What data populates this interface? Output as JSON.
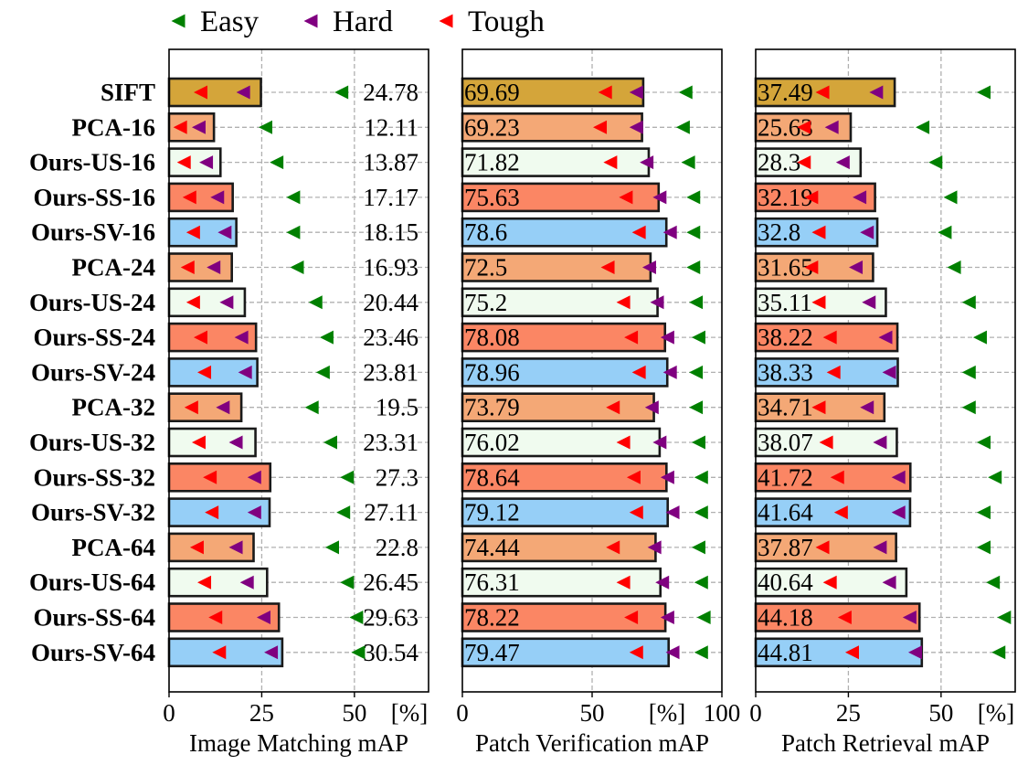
{
  "chart_data": {
    "type": "bar",
    "orientation": "horizontal",
    "categories": [
      "SIFT",
      "PCA-16",
      "Ours-US-16",
      "Ours-SS-16",
      "Ours-SV-16",
      "PCA-24",
      "Ours-US-24",
      "Ours-SS-24",
      "Ours-SV-24",
      "PCA-32",
      "Ours-US-32",
      "Ours-SS-32",
      "Ours-SV-32",
      "PCA-64",
      "Ours-US-64",
      "Ours-SS-64",
      "Ours-SV-64"
    ],
    "bar_colors": [
      "#d4a53a",
      "#f4a876",
      "#f0fbef",
      "#fb8664",
      "#96cff7",
      "#f4a876",
      "#f0fbef",
      "#fb8664",
      "#96cff7",
      "#f4a876",
      "#f0fbef",
      "#fb8664",
      "#96cff7",
      "#f4a876",
      "#f0fbef",
      "#fb8664",
      "#96cff7"
    ],
    "legend": [
      {
        "name": "Easy",
        "color": "#008000"
      },
      {
        "name": "Hard",
        "color": "#800080"
      },
      {
        "name": "Tough",
        "color": "#ff0000"
      }
    ],
    "panels": [
      {
        "id": "image-matching",
        "xlabel": "Image Matching mAP",
        "unit": "[%]",
        "xlim": [
          0,
          70
        ],
        "xticks": [
          0,
          25,
          50
        ],
        "value_labels": [
          "24.78",
          "12.11",
          "13.87",
          "17.17",
          "18.15",
          "16.93",
          "20.44",
          "23.46",
          "23.81",
          "19.5",
          "23.31",
          "27.3",
          "27.11",
          "22.8",
          "26.45",
          "29.63",
          "30.54"
        ],
        "values": [
          24.78,
          12.11,
          13.87,
          17.17,
          18.15,
          16.93,
          20.44,
          23.46,
          23.81,
          19.5,
          23.31,
          27.3,
          27.11,
          22.8,
          26.45,
          29.63,
          30.54
        ],
        "easy": [
          46.5,
          26,
          29,
          33.5,
          33.5,
          34.5,
          39.5,
          42.5,
          41.5,
          38.5,
          43.5,
          48,
          47,
          44,
          48,
          50.5,
          51
        ],
        "hard": [
          20,
          8,
          10,
          13,
          15,
          12,
          15.5,
          19.5,
          20.5,
          14.5,
          18,
          23,
          23,
          18,
          21,
          25.5,
          27.5
        ],
        "tough": [
          8.5,
          3,
          4,
          5.5,
          6.5,
          5,
          6.5,
          8.5,
          9.5,
          6,
          8,
          11,
          11.5,
          7.5,
          9.5,
          12.5,
          13.5
        ]
      },
      {
        "id": "patch-verification",
        "xlabel": "Patch Verification mAP",
        "unit": "[%]",
        "xlim": [
          0,
          100
        ],
        "xticks": [
          0,
          50,
          100
        ],
        "value_labels": [
          "69.69",
          "69.23",
          "71.82",
          "75.63",
          "78.6",
          "72.5",
          "75.2",
          "78.08",
          "78.96",
          "73.79",
          "76.02",
          "78.64",
          "79.12",
          "74.44",
          "76.31",
          "78.22",
          "79.47"
        ],
        "values": [
          69.69,
          69.23,
          71.82,
          75.63,
          78.6,
          72.5,
          75.2,
          78.08,
          78.96,
          73.79,
          76.02,
          78.64,
          79.12,
          74.44,
          76.31,
          78.22,
          79.47
        ],
        "easy": [
          86,
          85,
          87,
          89,
          89,
          89,
          90,
          91,
          90,
          90,
          91,
          92,
          92,
          91,
          92,
          93,
          92
        ],
        "hard": [
          67,
          67,
          71,
          76,
          80,
          72,
          75,
          79,
          80,
          73,
          76,
          79,
          81,
          74,
          77,
          79,
          81
        ],
        "tough": [
          55,
          53,
          57,
          63,
          68,
          56,
          62,
          65,
          68,
          58,
          62,
          66,
          67,
          58,
          62,
          65,
          67
        ]
      },
      {
        "id": "patch-retrieval",
        "xlabel": "Patch Retrieval mAP",
        "unit": "[%]",
        "xlim": [
          0,
          70
        ],
        "xticks": [
          0,
          25,
          50
        ],
        "value_labels": [
          "37.49",
          "25.63",
          "28.3",
          "32.19",
          "32.8",
          "31.65",
          "35.11",
          "38.22",
          "38.33",
          "34.71",
          "38.07",
          "41.72",
          "41.64",
          "37.87",
          "40.64",
          "44.18",
          "44.81"
        ],
        "values": [
          37.49,
          25.63,
          28.3,
          32.19,
          32.8,
          31.65,
          35.11,
          38.22,
          38.33,
          34.71,
          38.07,
          41.72,
          41.64,
          37.87,
          40.64,
          44.18,
          44.81
        ],
        "easy": [
          61.5,
          45,
          48.5,
          52.5,
          51,
          53.5,
          57.5,
          60.5,
          57.5,
          57.5,
          61.5,
          64.5,
          61.5,
          61.5,
          64,
          67,
          65.5
        ],
        "hard": [
          32.5,
          20.5,
          23.5,
          28,
          30,
          27,
          30.5,
          35,
          36,
          30,
          33.5,
          38.5,
          38.5,
          33.5,
          36,
          41.5,
          43
        ],
        "tough": [
          18,
          13,
          13,
          15,
          17,
          15,
          17,
          20,
          21,
          17,
          19,
          22,
          23,
          18,
          20,
          24,
          26
        ]
      }
    ]
  }
}
